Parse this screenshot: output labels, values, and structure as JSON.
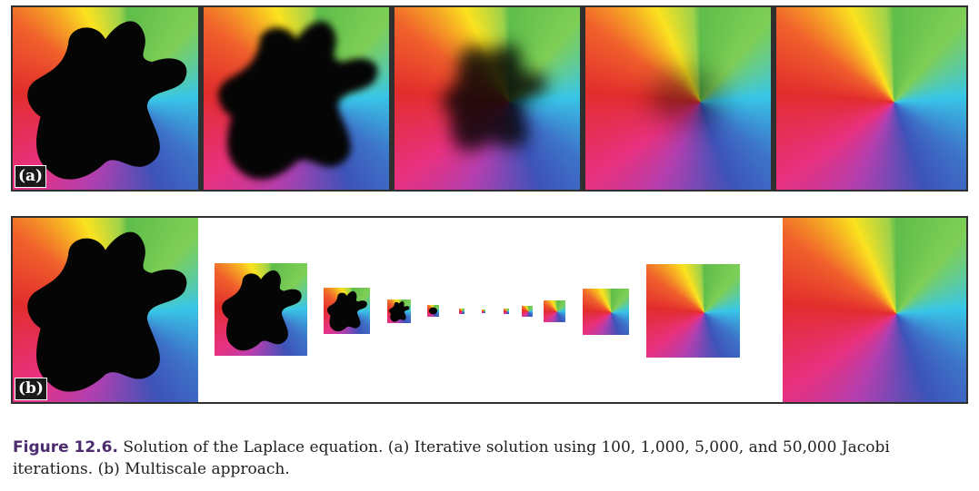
{
  "figure": {
    "row_a_label": "(a)",
    "row_b_label": "(b)",
    "caption_prefix": "Figure 12.6.",
    "caption_text": " Solution of the Laplace equation. (a) Iterative solution using 100, 1,000, 5,000, and 50,000 Jacobi iterations. (b) Multiscale approach."
  }
}
